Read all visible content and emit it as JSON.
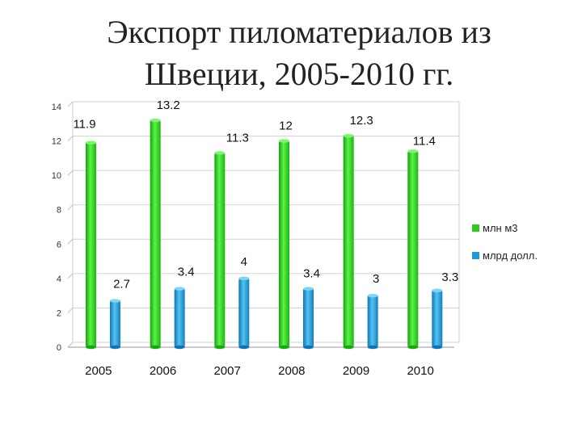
{
  "title_line1": "Экспорт пиломатериалов из",
  "title_line2": "Швеции, 2005-2010 гг.",
  "chart_data": {
    "type": "bar",
    "title": "Экспорт пиломатериалов из Швеции, 2005-2010 гг.",
    "categories": [
      "2005",
      "2006",
      "2007",
      "2008",
      "2009",
      "2010"
    ],
    "series": [
      {
        "name": "млн м3",
        "values": [
          11.9,
          13.2,
          11.3,
          12,
          12.3,
          11.4
        ],
        "color": "#2ecc1f"
      },
      {
        "name": "млрд долл.",
        "values": [
          2.7,
          3.4,
          4,
          3.4,
          3,
          3.3
        ],
        "color": "#1e9bd7"
      }
    ],
    "ylim": [
      0,
      14
    ],
    "yticks": [
      0,
      2,
      4,
      6,
      8,
      10,
      12,
      14
    ],
    "data_labels": [
      [
        "11.9",
        "13.2",
        "11.3",
        "12",
        "12.3",
        "11.4"
      ],
      [
        "2.7",
        "3.4",
        "4",
        "3.4",
        "3",
        "3.3"
      ]
    ],
    "grid": true,
    "legend": "right"
  }
}
